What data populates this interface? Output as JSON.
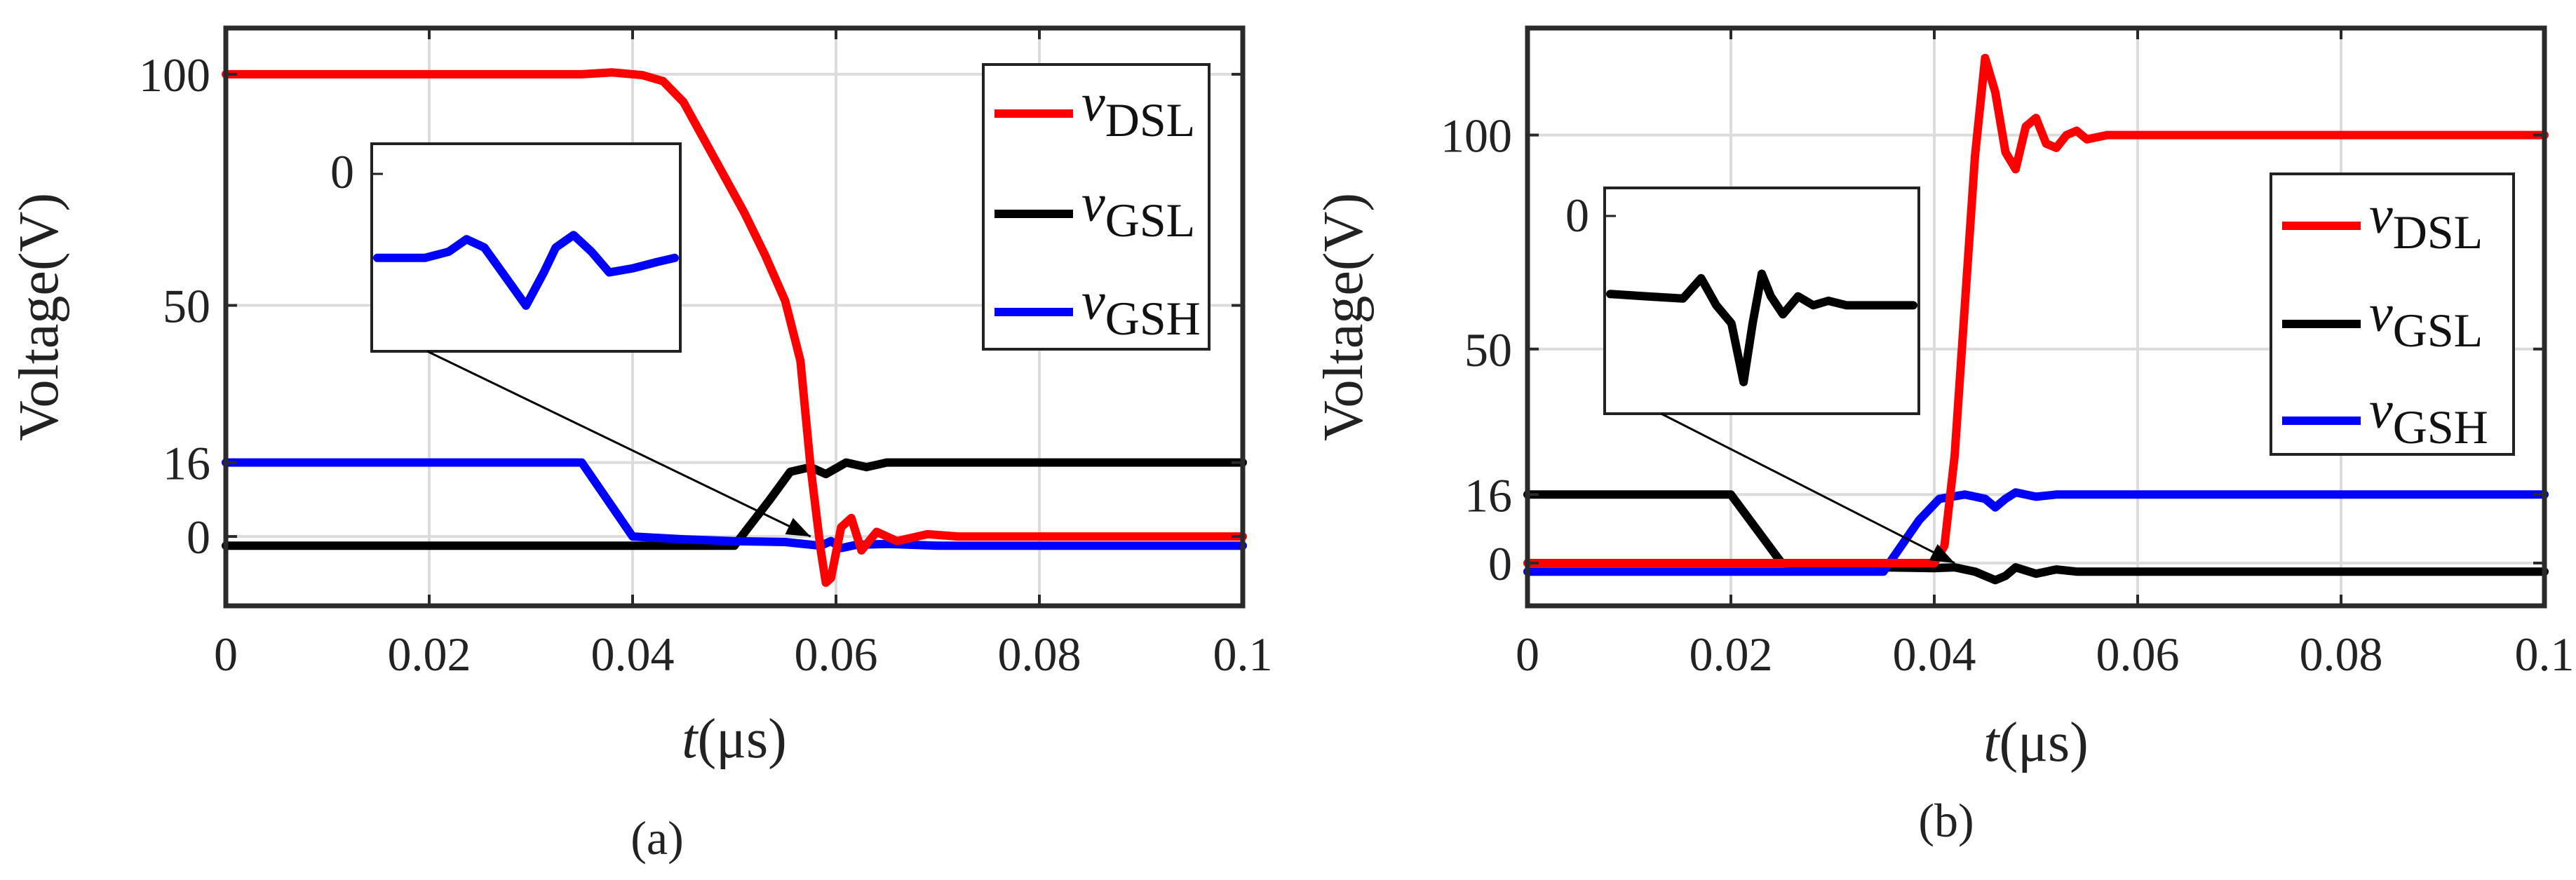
{
  "chart_data": [
    {
      "panel_label": "(a)",
      "type": "line",
      "xlabel": {
        "var": "t",
        "unit": "μs"
      },
      "ylabel": "Voltage(V)",
      "xlim": [
        0,
        0.1
      ],
      "ylim": [
        -15,
        110
      ],
      "xticks": [
        0,
        0.02,
        0.04,
        0.06,
        0.08,
        0.1
      ],
      "xtick_labels": [
        "0",
        "0.02",
        "0.04",
        "0.06",
        "0.08",
        "0.1"
      ],
      "yticks": [
        0,
        16,
        50,
        100
      ],
      "ytick_labels": [
        "0",
        "16",
        "50",
        "100"
      ],
      "grid": true,
      "legend_position": "top-right",
      "series": [
        {
          "name": "vDSL",
          "letter": "v",
          "sub": "DSL",
          "color": "#ff0000",
          "x": [
            0,
            0.035,
            0.038,
            0.041,
            0.043,
            0.045,
            0.047,
            0.049,
            0.051,
            0.053,
            0.055,
            0.0565,
            0.0575,
            0.0585,
            0.059,
            0.0595,
            0.0605,
            0.0615,
            0.0625,
            0.064,
            0.066,
            0.069,
            0.072,
            0.1
          ],
          "y": [
            100,
            100,
            100.4,
            99.8,
            98.5,
            94,
            86,
            78,
            70,
            61,
            51,
            38,
            15,
            -3,
            -10,
            -9,
            2,
            4,
            -3,
            1,
            -1,
            0.5,
            0,
            0
          ]
        },
        {
          "name": "vGSL",
          "letter": "v",
          "sub": "GSL",
          "color": "#000000",
          "x": [
            0,
            0.05,
            0.0535,
            0.0555,
            0.0575,
            0.059,
            0.061,
            0.063,
            0.065,
            0.07,
            0.1
          ],
          "y": [
            -2,
            -2,
            8,
            14,
            15,
            13.5,
            16,
            15,
            16,
            16,
            16
          ]
        },
        {
          "name": "vGSH",
          "letter": "v",
          "sub": "GSH",
          "color": "#0000ff",
          "x": [
            0,
            0.035,
            0.04,
            0.045,
            0.05,
            0.055,
            0.0585,
            0.0595,
            0.0605,
            0.062,
            0.065,
            0.07,
            0.1
          ],
          "y": [
            16,
            16,
            0,
            -0.6,
            -1,
            -1.2,
            -2,
            -1,
            -2.5,
            -1.8,
            -1.6,
            -2,
            -2
          ]
        }
      ],
      "inset": {
        "series": "vGSH",
        "ytick_label": "0",
        "x": [
          0,
          0.08,
          0.16,
          0.24,
          0.3,
          0.36,
          0.42,
          0.5,
          0.56,
          0.6,
          0.66,
          0.72,
          0.78,
          0.86,
          0.94,
          1.0
        ],
        "y": [
          0.55,
          0.55,
          0.55,
          0.52,
          0.46,
          0.5,
          0.62,
          0.78,
          0.62,
          0.5,
          0.44,
          0.52,
          0.62,
          0.6,
          0.57,
          0.55
        ],
        "points_to": {
          "x": 0.0575,
          "y": 0
        }
      }
    },
    {
      "panel_label": "(b)",
      "type": "line",
      "xlabel": {
        "var": "t",
        "unit": "μs"
      },
      "ylabel": "Voltage(V)",
      "xlim": [
        0,
        0.1
      ],
      "ylim": [
        -10,
        125
      ],
      "xticks": [
        0,
        0.02,
        0.04,
        0.06,
        0.08,
        0.1
      ],
      "xtick_labels": [
        "0",
        "0.02",
        "0.04",
        "0.06",
        "0.08",
        "0.1"
      ],
      "yticks": [
        0,
        16,
        50,
        100
      ],
      "ytick_labels": [
        "0",
        "16",
        "50",
        "100"
      ],
      "grid": true,
      "legend_position": "center-right",
      "series": [
        {
          "name": "vDSL",
          "letter": "v",
          "sub": "DSL",
          "color": "#ff0000",
          "x": [
            0,
            0.03,
            0.04,
            0.041,
            0.042,
            0.043,
            0.044,
            0.045,
            0.046,
            0.047,
            0.048,
            0.049,
            0.05,
            0.051,
            0.052,
            0.053,
            0.054,
            0.055,
            0.057,
            0.06,
            0.1
          ],
          "y": [
            0,
            0,
            0,
            4,
            25,
            60,
            95,
            118,
            110,
            96,
            92,
            102,
            104,
            98,
            97,
            100,
            101,
            99,
            100,
            100,
            100
          ]
        },
        {
          "name": "vGSL",
          "letter": "v",
          "sub": "GSL",
          "color": "#000000",
          "x": [
            0,
            0.02,
            0.025,
            0.03,
            0.035,
            0.04,
            0.042,
            0.044,
            0.046,
            0.047,
            0.048,
            0.05,
            0.052,
            0.054,
            0.057,
            0.06,
            0.1
          ],
          "y": [
            16,
            16,
            0,
            -0.5,
            -1,
            -1.2,
            -1,
            -2,
            -4,
            -3,
            -1,
            -2.5,
            -1.5,
            -2,
            -2,
            -2,
            -2
          ]
        },
        {
          "name": "vGSH",
          "letter": "v",
          "sub": "GSH",
          "color": "#0000ff",
          "x": [
            0,
            0.035,
            0.0385,
            0.0405,
            0.043,
            0.045,
            0.046,
            0.047,
            0.048,
            0.05,
            0.052,
            0.055,
            0.1
          ],
          "y": [
            -2,
            -2,
            10,
            15,
            16,
            15,
            13,
            15,
            16.5,
            15.5,
            16,
            16,
            16
          ]
        }
      ],
      "inset": {
        "series": "vGSL",
        "ytick_label": "0",
        "x": [
          0,
          0.12,
          0.24,
          0.3,
          0.35,
          0.4,
          0.44,
          0.47,
          0.5,
          0.53,
          0.57,
          0.62,
          0.67,
          0.72,
          0.78,
          0.86,
          1.0
        ],
        "y": [
          0.47,
          0.48,
          0.49,
          0.4,
          0.52,
          0.6,
          0.86,
          0.6,
          0.38,
          0.48,
          0.56,
          0.48,
          0.52,
          0.5,
          0.52,
          0.52,
          0.52
        ],
        "points_to": {
          "x": 0.042,
          "y": 0
        }
      }
    }
  ]
}
